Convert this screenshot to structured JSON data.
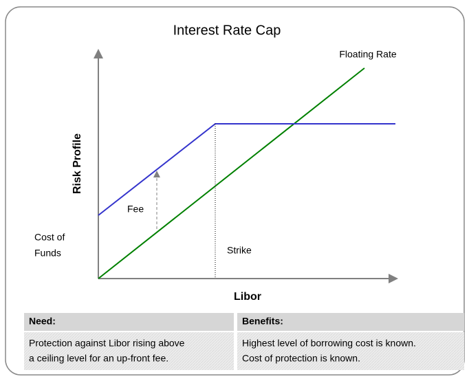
{
  "title": "Interest Rate Cap",
  "axes": {
    "y_label": "Risk Profile",
    "x_label": "Libor"
  },
  "annotations": {
    "floating_rate": "Floating Rate",
    "fee": "Fee",
    "cost_of_funds": [
      "Cost of",
      "Funds"
    ],
    "strike": "Strike"
  },
  "need": {
    "heading": "Need:",
    "lines": [
      "Protection against Libor rising above",
      "a ceiling level for an up-front fee."
    ]
  },
  "benefits": {
    "heading": "Benefits:",
    "lines": [
      "Highest level of borrowing cost is known.",
      "Cost of protection is known."
    ]
  }
}
